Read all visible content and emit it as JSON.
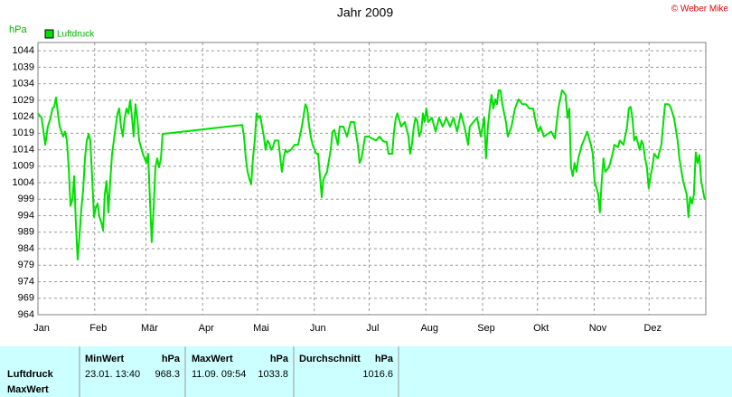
{
  "chart_data": {
    "type": "line",
    "title": "Jahr 2009",
    "copyright": "© Weber Mike",
    "y_label": "hPa",
    "xlim": [
      0,
      365
    ],
    "ylim": [
      964,
      1046.5
    ],
    "grid": true,
    "legend": "top-left",
    "xticks": [
      {
        "value": 0,
        "label": "Jan"
      },
      {
        "value": 31,
        "label": "Feb"
      },
      {
        "value": 59,
        "label": "Mär"
      },
      {
        "value": 90,
        "label": "Apr"
      },
      {
        "value": 120,
        "label": "Mai"
      },
      {
        "value": 151,
        "label": "Jun"
      },
      {
        "value": 181,
        "label": "Jul"
      },
      {
        "value": 212,
        "label": "Aug"
      },
      {
        "value": 243,
        "label": "Sep"
      },
      {
        "value": 273,
        "label": "Okt"
      },
      {
        "value": 304,
        "label": "Nov"
      },
      {
        "value": 334,
        "label": "Dez"
      }
    ],
    "yticks": [
      964,
      969,
      974,
      979,
      984,
      989,
      994,
      999,
      1004,
      1009,
      1014,
      1019,
      1024,
      1029,
      1034,
      1039,
      1044
    ],
    "series": [
      {
        "name": "Luftdruck",
        "color": "#00e000",
        "x": [
          0,
          2.0,
          4.0,
          5.4,
          6.9,
          7.9,
          8.9,
          9.9,
          10.9,
          11.9,
          13.8,
          14.8,
          15.8,
          16.8,
          17.8,
          18.8,
          19.8,
          20.7,
          21.7,
          22.7,
          23.7,
          24.7,
          25.7,
          26.7,
          27.7,
          28.6,
          29.6,
          30.6,
          31.6,
          32.6,
          33.6,
          34.6,
          35.6,
          36.5,
          37.5,
          38.5,
          39.5,
          40.5,
          41.5,
          42.5,
          43.5,
          44.4,
          45.4,
          46.4,
          47.4,
          48.4,
          49.4,
          50.4,
          51.4,
          52.3,
          53.3,
          54.3,
          55.3,
          57.3,
          58.3,
          59.3,
          60.2,
          61.2,
          62.2,
          63.2,
          64.2,
          65.2,
          66.2,
          67.2,
          68.1,
          111.6,
          112.6,
          113.6,
          114.6,
          115.6,
          116.5,
          117.5,
          118.5,
          119.5,
          120.5,
          121.5,
          122.5,
          123.5,
          124.4,
          125.4,
          126.4,
          127.4,
          128.4,
          129.4,
          131.4,
          133.3,
          134.3,
          135.3,
          136.3,
          138.3,
          140.2,
          142.2,
          144.2,
          146.2,
          147.2,
          148.1,
          149.1,
          150.1,
          152.1,
          153.1,
          155.1,
          156.0,
          158.0,
          160.0,
          161.0,
          162.0,
          163.9,
          164.9,
          166.9,
          168.9,
          170.9,
          172.8,
          174.8,
          175.8,
          176.8,
          178.8,
          180.7,
          182.7,
          184.7,
          186.7,
          188.6,
          190.6,
          191.6,
          193.6,
          194.6,
          195.6,
          196.5,
          198.5,
          200.5,
          202.5,
          203.4,
          204.4,
          205.4,
          206.4,
          207.4,
          208.4,
          209.4,
          210.4,
          211.3,
          212.3,
          213.3,
          215.3,
          217.3,
          219.2,
          221.2,
          223.2,
          225.2,
          227.1,
          229.1,
          231.1,
          233.1,
          235.1,
          236.0,
          238.0,
          240.0,
          242.0,
          243.9,
          244.9,
          245.9,
          246.9,
          247.9,
          248.9,
          249.9,
          250.8,
          251.8,
          252.8,
          253.8,
          254.8,
          255.8,
          256.8,
          258.8,
          260.7,
          262.7,
          264.7,
          266.7,
          268.6,
          270.6,
          272.6,
          273.6,
          274.6,
          276.5,
          278.5,
          280.5,
          282.5,
          284.4,
          286.4,
          288.4,
          289.4,
          290.4,
          291.3,
          292.3,
          293.3,
          294.3,
          295.3,
          297.3,
          298.3,
          300.2,
          302.2,
          303.2,
          304.2,
          306.2,
          307.1,
          308.1,
          309.1,
          310.1,
          312.1,
          314.1,
          315.0,
          317.0,
          318.0,
          320.0,
          322.0,
          322.9,
          323.9,
          324.9,
          325.9,
          326.9,
          328.9,
          329.9,
          330.8,
          331.8,
          332.8,
          333.8,
          334.8,
          335.8,
          336.8,
          338.7,
          340.7,
          342.7,
          344.7,
          345.7,
          347.6,
          349.6,
          350.6,
          352.6,
          354.6,
          355.5,
          356.5,
          357.5,
          358.5,
          359.5,
          360.5,
          361.5,
          362.5,
          363.4,
          364.4
        ],
        "values": [
          1025,
          1023.7,
          1015.5,
          1021,
          1023.7,
          1026.5,
          1027,
          1029.8,
          1025,
          1021,
          1018,
          1019.5,
          1016.8,
          1008.7,
          997,
          998.8,
          1006,
          992,
          980.7,
          988,
          996,
          1001.8,
          1011.4,
          1016.8,
          1018.8,
          1016.8,
          1006,
          993.6,
          996.4,
          997.7,
          993.6,
          992,
          989.5,
          1000.4,
          1004.5,
          995,
          1004.5,
          1012.8,
          1016.8,
          1021,
          1025,
          1026.5,
          1021,
          1018,
          1023.7,
          1026.5,
          1025,
          1029,
          1023.7,
          1018,
          1027.8,
          1023.7,
          1016.8,
          1012.8,
          1011.4,
          1010,
          1012.8,
          999,
          986,
          996.3,
          1008.7,
          1011.4,
          1008.7,
          1011.4,
          1018.8,
          1021.5,
          1018,
          1011.4,
          1007.3,
          1005,
          1003.5,
          1011.4,
          1016.8,
          1025,
          1023.7,
          1024.3,
          1021,
          1018,
          1014,
          1016.8,
          1016,
          1014,
          1014.8,
          1016.8,
          1016.8,
          1007.3,
          1011.4,
          1014,
          1013.2,
          1014,
          1015.5,
          1015.5,
          1021,
          1027.8,
          1026.5,
          1021.5,
          1018,
          1015.5,
          1012.8,
          1012.8,
          999.6,
          1005,
          1007.3,
          1014,
          1019.5,
          1020,
          1015.5,
          1021,
          1021,
          1018,
          1022.4,
          1022.4,
          1015.5,
          1010,
          1011.4,
          1018,
          1018,
          1017.4,
          1016.8,
          1018,
          1016.6,
          1016.3,
          1012.8,
          1012.8,
          1019.5,
          1023.7,
          1025,
          1021,
          1022.4,
          1018,
          1012.8,
          1015.5,
          1021,
          1023.7,
          1022.4,
          1018,
          1019.5,
          1025,
          1022.4,
          1026.5,
          1022.4,
          1023.7,
          1019.5,
          1023.7,
          1021,
          1023.7,
          1021,
          1023.7,
          1019.5,
          1025,
          1021,
          1015.5,
          1021,
          1022.4,
          1023.7,
          1018,
          1023.7,
          1011.4,
          1021,
          1026.5,
          1030.6,
          1026.5,
          1029.3,
          1027.8,
          1032,
          1032,
          1027.8,
          1025,
          1022.4,
          1018,
          1021,
          1026.5,
          1029.3,
          1027.8,
          1027.8,
          1026.5,
          1026.5,
          1021,
          1019.5,
          1021,
          1018,
          1018.8,
          1019.5,
          1017.4,
          1026.5,
          1032,
          1030.6,
          1023.7,
          1026.5,
          1008.7,
          1006,
          1010,
          1007.3,
          1011.4,
          1015.5,
          1016.8,
          1019.5,
          1015.5,
          1012.8,
          1004.5,
          1000.4,
          995,
          1004.5,
          1011.4,
          1007.3,
          1008.7,
          1012.8,
          1015.5,
          1014.8,
          1016.8,
          1015.5,
          1021,
          1026.5,
          1027,
          1023.7,
          1016.8,
          1018,
          1014,
          1016.8,
          1015.5,
          1011.4,
          1008.7,
          1002.3,
          1006,
          1008.7,
          1012.8,
          1011.4,
          1015.5,
          1027.8,
          1027.8,
          1027,
          1023.7,
          1016.8,
          1011.4,
          1004.5,
          1000.4,
          993.6,
          999.6,
          997.7,
          1000.4,
          1013.2,
          1010,
          1012.4,
          1004.5,
          1001.8,
          998.8
        ]
      }
    ]
  },
  "summary": {
    "row_labels": [
      "Luftdruck",
      "MaxWert"
    ],
    "columns": [
      {
        "name": "MinWert",
        "unit": "hPa",
        "time": "23.01. 13:40",
        "value": 968.3
      },
      {
        "name": "MaxWert",
        "unit": "hPa",
        "time": "11.09. 09:54",
        "value": 1033.8
      },
      {
        "name": "Durchschnitt",
        "unit": "hPa",
        "value": 1016.6
      }
    ]
  }
}
